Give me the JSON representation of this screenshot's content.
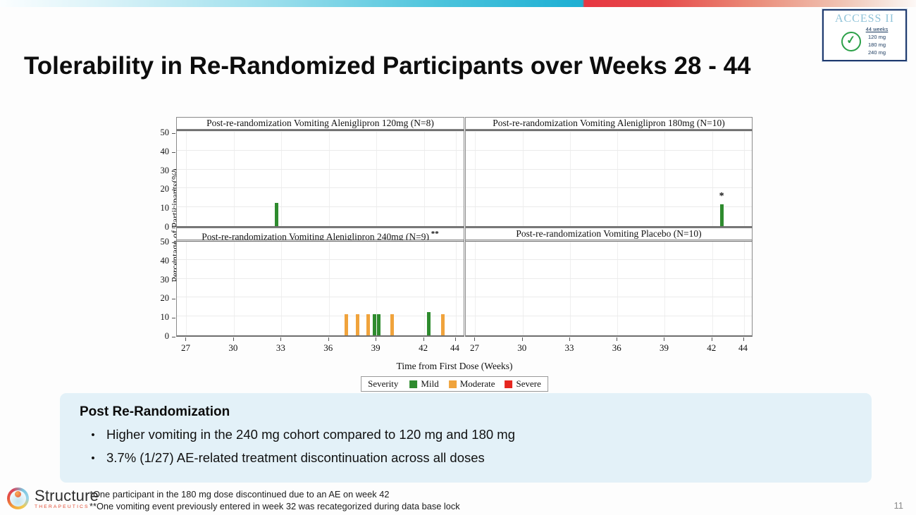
{
  "slide": {
    "title": "Tolerability in Re-Randomized Participants over Weeks 28 - 44",
    "page_number": "11"
  },
  "access_logo": {
    "title": "ACCESS II",
    "check_icon": "green-check-circle",
    "lines": [
      "44 weeks",
      "120 mg",
      "180 mg",
      "240 mg"
    ]
  },
  "chart_data": {
    "type": "bar",
    "layout": "2x2 small-multiple panels",
    "ylabel": "Percentage of Participants(%)",
    "xlabel": "Time from First Dose (Weeks)",
    "ylim": [
      0,
      50
    ],
    "yticks": [
      0,
      10,
      20,
      30,
      40,
      50
    ],
    "xticks": [
      27,
      30,
      33,
      36,
      39,
      42,
      44
    ],
    "xlim": [
      26.4,
      44.6
    ],
    "grid": true,
    "legend": {
      "title": "Severity",
      "position": "bottom-center",
      "entries": [
        {
          "label": "Mild",
          "color": "#2e8b2e"
        },
        {
          "label": "Moderate",
          "color": "#f0a33c"
        },
        {
          "label": "Severe",
          "color": "#e6261f"
        }
      ]
    },
    "panels": [
      {
        "title": "Post-re-randomization Vomiting Aleniglipron 120mg (N=8)",
        "note": "",
        "bars": [
          {
            "week": 32.7,
            "value": 12.5,
            "severity": "Mild"
          }
        ]
      },
      {
        "title": "Post-re-randomization Vomiting Aleniglipron 180mg (N=10)",
        "note": "",
        "bars": [
          {
            "week": 42.6,
            "value": 11.5,
            "severity": "Mild",
            "marker": "*"
          }
        ]
      },
      {
        "title": "Post-re-randomization Vomiting Aleniglipron 240mg (N=9)",
        "note": "**",
        "bars": [
          {
            "week": 37.1,
            "value": 11.1,
            "severity": "Moderate"
          },
          {
            "week": 37.8,
            "value": 11.1,
            "severity": "Moderate"
          },
          {
            "week": 38.5,
            "value": 11.1,
            "severity": "Moderate"
          },
          {
            "week": 38.9,
            "value": 11.1,
            "severity": "Mild"
          },
          {
            "week": 39.15,
            "value": 11.1,
            "severity": "Mild"
          },
          {
            "week": 40.0,
            "value": 11.1,
            "severity": "Moderate"
          },
          {
            "week": 42.3,
            "value": 12.5,
            "severity": "Mild"
          },
          {
            "week": 43.2,
            "value": 11.1,
            "severity": "Moderate"
          }
        ]
      },
      {
        "title": "Post-re-randomization Vomiting Placebo (N=10)",
        "note": "",
        "bars": []
      }
    ]
  },
  "summary_box": {
    "heading": "Post Re-Randomization",
    "bullet_glyph": "•",
    "bullets": [
      "Higher vomiting in the 240 mg cohort compared to 120 mg and 180 mg",
      "3.7% (1/27) AE-related treatment discontinuation across all doses"
    ]
  },
  "footer": {
    "logo_name": "Structure",
    "logo_subtext": "THERAPEUTICS",
    "footnotes": [
      "*One participant in the 180 mg dose discontinued due to an AE on week 42",
      "**One vomiting event previously entered in week 32 was recategorized during data base lock"
    ]
  },
  "colors": {
    "mild": "#2e8b2e",
    "moderate": "#f0a33c",
    "severe": "#e6261f",
    "summary_bg": "#e3f1f8",
    "accent_cyan": "#1fb0d2",
    "accent_red": "#e73742",
    "access_border": "#1e3a6e"
  }
}
